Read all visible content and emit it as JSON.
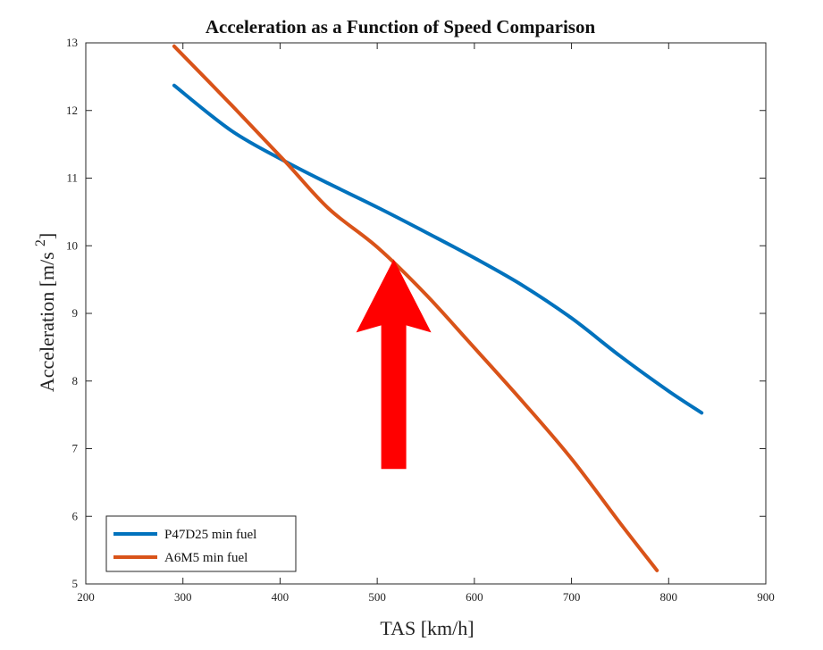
{
  "chart_data": {
    "type": "line",
    "title": "Acceleration as a Function of Speed Comparison",
    "xlabel": "TAS [km/h]",
    "ylabel": "Acceleration [m/s",
    "ylabel_superscript": "2",
    "ylabel_close": "]",
    "xlim": [
      200,
      900
    ],
    "ylim": [
      5,
      13
    ],
    "xticks": [
      "200",
      "300",
      "400",
      "500",
      "600",
      "700",
      "800",
      "900"
    ],
    "yticks": [
      "5",
      "6",
      "7",
      "8",
      "9",
      "10",
      "11",
      "12",
      "13"
    ],
    "grid": false,
    "legend_position": "bottom-left",
    "series": [
      {
        "name": "P47D25 min fuel",
        "color": "#0072BD",
        "x": [
          291,
          350,
          405,
          450,
          500,
          550,
          600,
          650,
          700,
          750,
          800,
          834
        ],
        "y": [
          12.37,
          11.7,
          11.25,
          10.92,
          10.57,
          10.2,
          9.82,
          9.41,
          8.93,
          8.37,
          7.85,
          7.53
        ]
      },
      {
        "name": "A6M5 min fuel",
        "color": "#D95319",
        "x": [
          291,
          350,
          405,
          450,
          500,
          550,
          600,
          650,
          700,
          750,
          788
        ],
        "y": [
          12.95,
          12.08,
          11.25,
          10.55,
          9.98,
          9.28,
          8.49,
          7.69,
          6.85,
          5.9,
          5.2
        ]
      }
    ],
    "annotations": [
      {
        "type": "arrow",
        "color": "#FF0000",
        "x": 517,
        "y_tip": 9.8,
        "y_tail": 6.7
      }
    ]
  }
}
